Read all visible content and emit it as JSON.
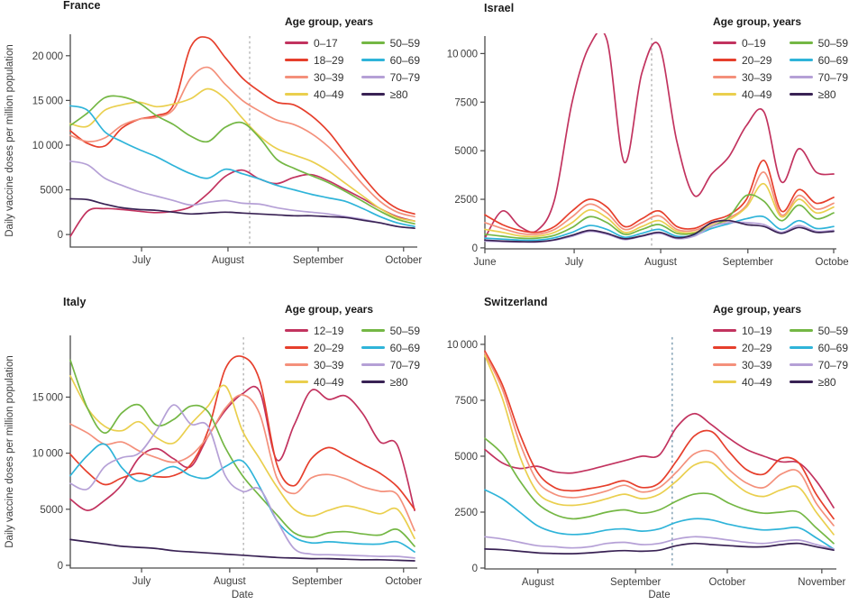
{
  "figure": {
    "ylabel": "Daily vaccine doses per million population",
    "xlabel": "Date",
    "legend_title": "Age group, years"
  },
  "colors": {
    "axis": "#4a4a4a",
    "tick_text": "#3d3d3d",
    "vline_gray": "#a8a8a8",
    "vline_blue": "#8da8ba"
  },
  "chart_data": [
    {
      "type": "line",
      "title": "France",
      "ylim": [
        -1400,
        22400
      ],
      "yticks": [
        0,
        5000,
        10000,
        15000,
        20000
      ],
      "xticks": [
        {
          "label": "July",
          "f": 0.207
        },
        {
          "label": "August",
          "f": 0.458
        },
        {
          "label": "September",
          "f": 0.72
        },
        {
          "label": "October",
          "f": 0.968
        }
      ],
      "vline_f": 0.521,
      "vline_color": "#a8a8a8",
      "series": [
        {
          "name": "0–17",
          "color": "#c2335f",
          "values": [
            -200,
            2600,
            2900,
            2800,
            2600,
            2450,
            2600,
            3100,
            4600,
            6500,
            7200,
            6200,
            5700,
            6400,
            6700,
            6000,
            5000,
            4000,
            2900,
            2000,
            1500
          ]
        },
        {
          "name": "18–29",
          "color": "#e63f2c",
          "values": [
            11600,
            10200,
            9900,
            11900,
            12900,
            13300,
            14500,
            21000,
            22000,
            19800,
            17500,
            16000,
            14800,
            14500,
            13300,
            11500,
            9000,
            6500,
            4300,
            2900,
            2300
          ]
        },
        {
          "name": "30–39",
          "color": "#f4907b",
          "values": [
            11100,
            10400,
            10800,
            12200,
            12900,
            13100,
            14000,
            17500,
            18700,
            16800,
            15000,
            13800,
            12800,
            12300,
            11300,
            9800,
            7800,
            5600,
            3700,
            2500,
            2000
          ]
        },
        {
          "name": "40–49",
          "color": "#eacf4e",
          "values": [
            12400,
            12100,
            13900,
            14500,
            14800,
            14300,
            14600,
            15200,
            16300,
            15200,
            13000,
            11000,
            9600,
            8900,
            8200,
            7100,
            5700,
            4300,
            2900,
            1900,
            1500
          ]
        },
        {
          "name": "50–59",
          "color": "#74b744",
          "values": [
            12200,
            13600,
            15300,
            15400,
            14700,
            13300,
            12300,
            11000,
            10400,
            12000,
            12500,
            10800,
            8400,
            7400,
            6600,
            5800,
            4800,
            3700,
            2600,
            1700,
            1200
          ]
        },
        {
          "name": "60–69",
          "color": "#2fb4d9",
          "values": [
            14400,
            13900,
            11500,
            10400,
            9500,
            8700,
            7700,
            6800,
            6300,
            7300,
            6800,
            6200,
            5500,
            5000,
            4500,
            4100,
            3700,
            2900,
            2000,
            1300,
            900
          ]
        },
        {
          "name": "70–79",
          "color": "#b5a0d6",
          "values": [
            8200,
            7800,
            6300,
            5500,
            4800,
            4300,
            3800,
            3300,
            3600,
            3800,
            3500,
            3400,
            3000,
            2700,
            2500,
            2300,
            2000,
            1700,
            1300,
            900,
            700
          ]
        },
        {
          "name": "≥80",
          "color": "#392254",
          "values": [
            4000,
            3900,
            3400,
            3000,
            2800,
            2700,
            2500,
            2300,
            2400,
            2500,
            2400,
            2300,
            2200,
            2100,
            2100,
            2000,
            1900,
            1600,
            1300,
            900,
            700
          ]
        }
      ]
    },
    {
      "type": "line",
      "title": "Israel",
      "ylim": [
        -50,
        10900
      ],
      "yticks": [
        0,
        2500,
        5000,
        7500,
        10000
      ],
      "xticks": [
        {
          "label": "June",
          "f": 0.0
        },
        {
          "label": "July",
          "f": 0.256
        },
        {
          "label": "August",
          "f": 0.504
        },
        {
          "label": "September",
          "f": 0.754
        },
        {
          "label": "October",
          "f": 1.0
        }
      ],
      "vline_f": 0.478,
      "vline_color": "#a8a8a8",
      "series": [
        {
          "name": "0–19",
          "color": "#c2335f",
          "values": [
            500,
            1900,
            1100,
            900,
            2500,
            7500,
            10400,
            10700,
            4400,
            9000,
            10400,
            5500,
            2700,
            3800,
            4700,
            6300,
            7000,
            3400,
            5100,
            3900,
            3800
          ]
        },
        {
          "name": "20–29",
          "color": "#e63f2c",
          "values": [
            1700,
            1200,
            900,
            800,
            1100,
            1900,
            2500,
            2100,
            1100,
            1500,
            1900,
            1100,
            1000,
            1400,
            1700,
            2500,
            4500,
            1900,
            3000,
            2300,
            2600
          ]
        },
        {
          "name": "30–39",
          "color": "#f4907b",
          "values": [
            1300,
            1000,
            750,
            700,
            950,
            1600,
            2250,
            1800,
            950,
            1300,
            1650,
            950,
            900,
            1250,
            1550,
            2200,
            3900,
            1700,
            2700,
            2000,
            2300
          ]
        },
        {
          "name": "40–49",
          "color": "#eacf4e",
          "values": [
            950,
            800,
            620,
            600,
            800,
            1300,
            1950,
            1550,
            800,
            1100,
            1400,
            850,
            800,
            1150,
            1450,
            2100,
            3300,
            1600,
            2500,
            1800,
            2100
          ]
        },
        {
          "name": "50–59",
          "color": "#74b744",
          "values": [
            700,
            600,
            500,
            500,
            650,
            1050,
            1600,
            1300,
            700,
            950,
            1200,
            750,
            750,
            1100,
            1600,
            2700,
            2400,
            1400,
            2200,
            1500,
            1800
          ]
        },
        {
          "name": "60–69",
          "color": "#2fb4d9",
          "values": [
            500,
            450,
            400,
            400,
            520,
            800,
            1150,
            950,
            550,
            750,
            950,
            600,
            650,
            1000,
            1250,
            1500,
            1600,
            950,
            1400,
            1000,
            1100
          ]
        },
        {
          "name": "70–79",
          "color": "#b5a0d6",
          "values": [
            350,
            320,
            300,
            300,
            400,
            600,
            850,
            700,
            430,
            600,
            750,
            480,
            600,
            1100,
            1300,
            1300,
            1200,
            800,
            1150,
            850,
            900
          ]
        },
        {
          "name": "≥80",
          "color": "#392254",
          "values": [
            400,
            350,
            320,
            320,
            420,
            650,
            900,
            750,
            470,
            620,
            800,
            520,
            700,
            1300,
            1400,
            1200,
            1100,
            750,
            1050,
            800,
            850
          ]
        }
      ]
    },
    {
      "type": "line",
      "title": "Italy",
      "ylim": [
        -240,
        20500
      ],
      "yticks": [
        0,
        5000,
        10000,
        15000
      ],
      "xticks": [
        {
          "label": "July",
          "f": 0.207
        },
        {
          "label": "August",
          "f": 0.463
        },
        {
          "label": "September",
          "f": 0.717
        },
        {
          "label": "October",
          "f": 0.968
        }
      ],
      "vline_f": 0.503,
      "vline_color": "#a8a8a8",
      "series": [
        {
          "name": "12–19",
          "color": "#c2335f",
          "values": [
            5900,
            4900,
            5800,
            7200,
            9600,
            10400,
            9500,
            8800,
            11500,
            13800,
            15300,
            15500,
            9400,
            12500,
            15600,
            14800,
            15100,
            13500,
            11000,
            10700,
            4900
          ]
        },
        {
          "name": "20–29",
          "color": "#e63f2c",
          "values": [
            9900,
            8300,
            7200,
            7800,
            8200,
            7900,
            8000,
            9000,
            12000,
            17500,
            18600,
            16500,
            9000,
            7100,
            9500,
            10500,
            9800,
            9000,
            8200,
            7000,
            5000
          ]
        },
        {
          "name": "30–39",
          "color": "#f4907b",
          "values": [
            12600,
            11800,
            10800,
            11000,
            10200,
            9600,
            9200,
            9800,
            11500,
            14000,
            15200,
            13500,
            7800,
            6400,
            7800,
            8100,
            7700,
            7000,
            6600,
            6300,
            3100
          ]
        },
        {
          "name": "40–49",
          "color": "#eacf4e",
          "values": [
            16900,
            14000,
            12400,
            12000,
            12800,
            11400,
            10900,
            12600,
            14200,
            16000,
            12000,
            9500,
            7000,
            5000,
            4400,
            4900,
            5300,
            5000,
            4600,
            5000,
            2400
          ]
        },
        {
          "name": "50–59",
          "color": "#74b744",
          "values": [
            18300,
            14000,
            11800,
            13600,
            14300,
            12500,
            13000,
            14200,
            13700,
            10500,
            8000,
            6200,
            4500,
            2900,
            2500,
            2900,
            3000,
            2800,
            2700,
            3200,
            1700
          ]
        },
        {
          "name": "60–69",
          "color": "#2fb4d9",
          "values": [
            8000,
            9800,
            10800,
            8700,
            7500,
            8200,
            8800,
            8000,
            7800,
            8800,
            9300,
            7000,
            4000,
            2500,
            2000,
            2100,
            2000,
            1900,
            1900,
            2100,
            1200
          ]
        },
        {
          "name": "70–79",
          "color": "#b5a0d6",
          "values": [
            7300,
            6800,
            8800,
            9600,
            10000,
            12000,
            14300,
            12600,
            12400,
            8000,
            6600,
            6800,
            4000,
            1500,
            1000,
            950,
            900,
            850,
            800,
            800,
            650
          ]
        },
        {
          "name": "≥80",
          "color": "#392254",
          "values": [
            2300,
            2100,
            1900,
            1700,
            1600,
            1500,
            1300,
            1200,
            1100,
            1000,
            900,
            800,
            700,
            650,
            600,
            600,
            550,
            500,
            500,
            450,
            400
          ]
        }
      ]
    },
    {
      "type": "line",
      "title": "Switzerland",
      "ylim": [
        -40,
        10400
      ],
      "yticks": [
        0,
        2500,
        5000,
        7500,
        10000
      ],
      "xticks": [
        {
          "label": "August",
          "f": 0.152
        },
        {
          "label": "September",
          "f": 0.432
        },
        {
          "label": "October",
          "f": 0.695
        },
        {
          "label": "November",
          "f": 0.966
        }
      ],
      "vline_f": 0.537,
      "vline_color": "#8da8ba",
      "series": [
        {
          "name": "10–19",
          "color": "#c2335f",
          "values": [
            5300,
            4700,
            4450,
            4550,
            4300,
            4250,
            4400,
            4600,
            4800,
            5000,
            5050,
            6300,
            6900,
            6400,
            5800,
            5300,
            5000,
            4750,
            4700,
            3900,
            2700
          ]
        },
        {
          "name": "20–29",
          "color": "#e63f2c",
          "values": [
            9700,
            8200,
            6000,
            4300,
            3600,
            3450,
            3550,
            3700,
            3900,
            3600,
            3800,
            4800,
            5900,
            6100,
            5200,
            4400,
            4200,
            4900,
            4700,
            3300,
            2200
          ]
        },
        {
          "name": "30–39",
          "color": "#f4907b",
          "values": [
            9600,
            8000,
            5600,
            3900,
            3300,
            3150,
            3250,
            3450,
            3700,
            3400,
            3600,
            4300,
            5100,
            5200,
            4400,
            3800,
            3600,
            4200,
            4300,
            2900,
            1900
          ]
        },
        {
          "name": "40–49",
          "color": "#eacf4e",
          "values": [
            9500,
            7600,
            5000,
            3400,
            2900,
            2800,
            2900,
            3100,
            3300,
            3100,
            3300,
            3900,
            4600,
            4700,
            4000,
            3400,
            3200,
            3500,
            3600,
            2500,
            1500
          ]
        },
        {
          "name": "50–59",
          "color": "#74b744",
          "values": [
            5800,
            5100,
            3900,
            2900,
            2400,
            2200,
            2300,
            2500,
            2600,
            2450,
            2600,
            3000,
            3300,
            3300,
            2900,
            2600,
            2450,
            2500,
            2500,
            1800,
            1100
          ]
        },
        {
          "name": "60–69",
          "color": "#2fb4d9",
          "values": [
            3500,
            3100,
            2500,
            1900,
            1600,
            1500,
            1550,
            1700,
            1750,
            1650,
            1750,
            2050,
            2200,
            2150,
            1950,
            1800,
            1700,
            1750,
            1800,
            1350,
            850
          ]
        },
        {
          "name": "70–79",
          "color": "#b5a0d6",
          "values": [
            1400,
            1300,
            1150,
            1000,
            950,
            900,
            950,
            1100,
            1150,
            1050,
            1100,
            1300,
            1400,
            1350,
            1250,
            1150,
            1100,
            1200,
            1250,
            1050,
            850
          ]
        },
        {
          "name": "≥80",
          "color": "#392254",
          "values": [
            850,
            820,
            750,
            680,
            650,
            640,
            680,
            740,
            780,
            750,
            800,
            1000,
            1100,
            1050,
            1000,
            950,
            950,
            1050,
            1100,
            950,
            800
          ]
        }
      ]
    }
  ]
}
